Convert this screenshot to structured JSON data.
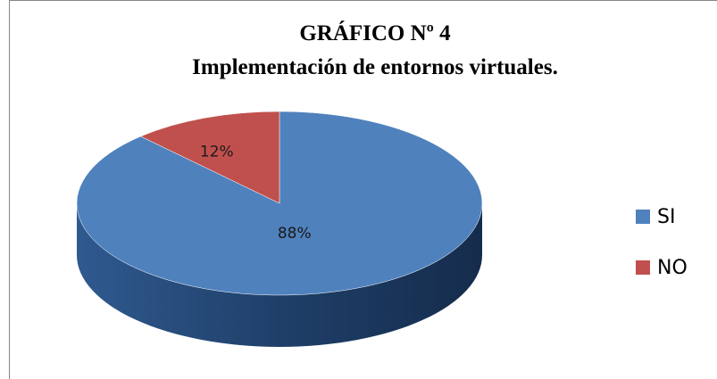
{
  "chart_data": {
    "type": "pie3d",
    "title": "GRÁFICO Nº 4",
    "subtitle": "Implementación de entornos virtuales.",
    "categories": [
      "SI",
      "NO"
    ],
    "values": [
      88,
      12
    ],
    "value_labels": [
      "88%",
      "12%"
    ],
    "colors": [
      "#4f81bd",
      "#c0504d"
    ],
    "legend": "right"
  }
}
